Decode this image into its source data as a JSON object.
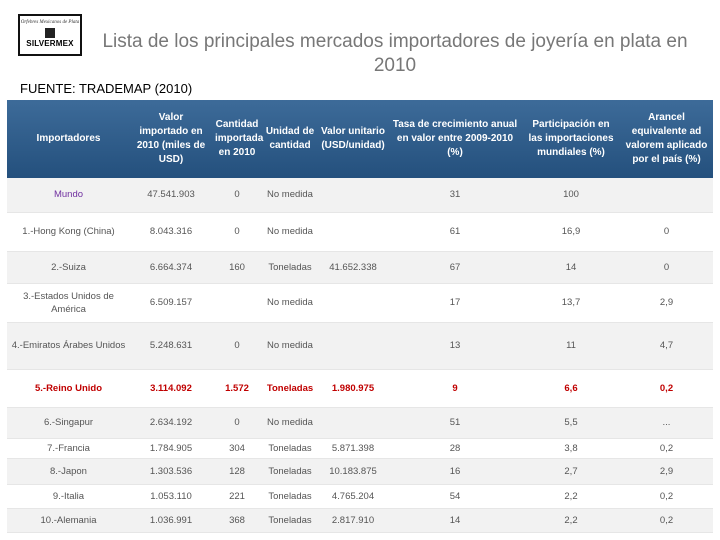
{
  "logo": {
    "tagline": "Orfebres Mexicanos de Plata",
    "name": "SILVERMEX"
  },
  "title": "Lista de los principales mercados importadores de joyería en plata en 2010",
  "source": "FUENTE: TRADEMAP (2010)",
  "table": {
    "header": [
      "Importadores",
      "Valor importado en 2010 (miles de USD)",
      "Cantidad importada en 2010",
      "Unidad de cantidad",
      "Valor unitario (USD/unidad)",
      "Tasa de crecimiento anual en valor entre 2009-2010 (%)",
      "Participación en las importaciones mundiales (%)",
      "Arancel equivalente ad valorem aplicado por el país (%)"
    ],
    "rows": [
      [
        "Mundo",
        "47.541.903",
        "0",
        "No medida",
        null,
        "31",
        "100",
        null
      ],
      [
        "1.-Hong Kong (China)",
        "8.043.316",
        "0",
        "No medida",
        null,
        "61",
        "16,9",
        "0"
      ],
      [
        "2.-Suiza",
        "6.664.374",
        "160",
        "Toneladas",
        "41.652.338",
        "67",
        "14",
        "0"
      ],
      [
        "3.-Estados Unidos de América",
        "6.509.157",
        null,
        "No medida",
        null,
        "17",
        "13,7",
        "2,9"
      ],
      [
        "4.-Emiratos Árabes Unidos",
        "5.248.631",
        "0",
        "No medida",
        null,
        "13",
        "11",
        "4,7"
      ],
      [
        "5.-Reino Unido",
        "3.114.092",
        "1.572",
        "Toneladas",
        "1.980.975",
        "9",
        "6,6",
        "0,2"
      ],
      [
        "6.-Singapur",
        "2.634.192",
        "0",
        "No medida",
        null,
        "51",
        "5,5",
        "..."
      ],
      [
        "7.-Francia",
        "1.784.905",
        "304",
        "Toneladas",
        "5.871.398",
        "28",
        "3,8",
        "0,2"
      ],
      [
        "8.-Japon",
        "1.303.536",
        "128",
        "Toneladas",
        "10.183.875",
        "16",
        "2,7",
        "2,9"
      ],
      [
        "9.-Italia",
        "1.053.110",
        "221",
        "Toneladas",
        "4.765.204",
        "54",
        "2,2",
        "0,2"
      ],
      [
        "10.-Alemania",
        "1.036.991",
        "368",
        "Toneladas",
        "2.817.910",
        "14",
        "2,2",
        "0,2"
      ]
    ]
  }
}
